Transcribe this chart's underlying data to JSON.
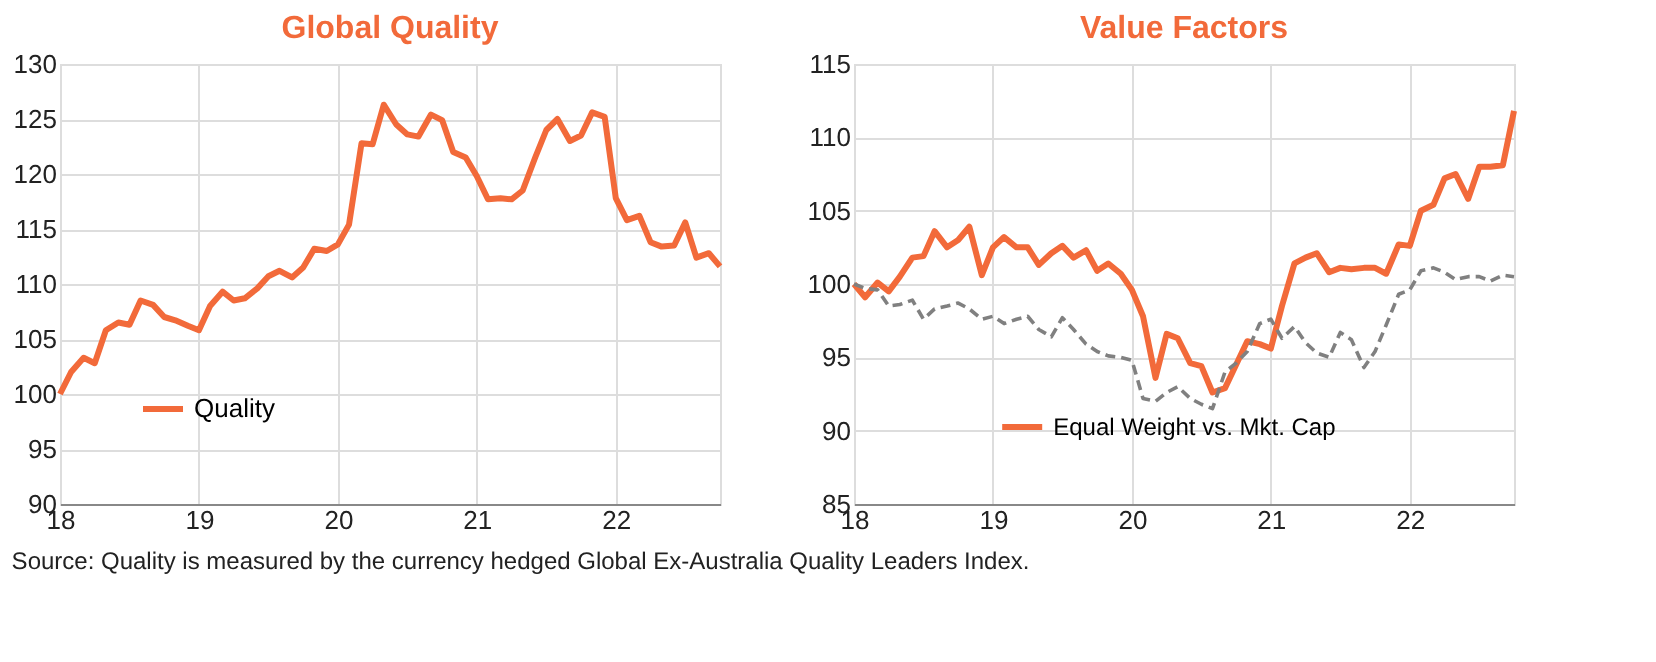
{
  "chart_data": [
    {
      "type": "line",
      "title": "Global Quality",
      "x": [
        18.0,
        18.08,
        18.17,
        18.25,
        18.33,
        18.42,
        18.5,
        18.58,
        18.67,
        18.75,
        18.83,
        18.92,
        19.0,
        19.08,
        19.17,
        19.25,
        19.33,
        19.42,
        19.5,
        19.58,
        19.67,
        19.75,
        19.83,
        19.92,
        20.0,
        20.08,
        20.17,
        20.25,
        20.33,
        20.42,
        20.5,
        20.58,
        20.67,
        20.75,
        20.83,
        20.92,
        21.0,
        21.08,
        21.17,
        21.25,
        21.33,
        21.42,
        21.5,
        21.58,
        21.67,
        21.75,
        21.83,
        21.92,
        22.0,
        22.08,
        22.17,
        22.25,
        22.33,
        22.42,
        22.5,
        22.58,
        22.67,
        22.75
      ],
      "series": [
        {
          "name": "Quality",
          "color": "#f26a3a",
          "values": [
            100,
            102,
            103.3,
            102.8,
            105.8,
            106.5,
            106.3,
            108.5,
            108.1,
            107,
            106.7,
            106.2,
            105.8,
            108,
            109.3,
            108.5,
            108.7,
            109.6,
            110.7,
            111.2,
            110.6,
            111.5,
            113.2,
            113,
            113.6,
            115.4,
            122.8,
            122.7,
            126.3,
            124.5,
            123.6,
            123.4,
            125.4,
            124.9,
            122,
            121.5,
            119.8,
            117.7,
            117.8,
            117.7,
            118.5,
            121.5,
            124,
            125,
            123,
            123.5,
            125.6,
            125.2,
            117.8,
            115.8,
            116.2,
            113.8,
            113.4,
            113.5,
            115.6,
            112.4,
            112.8,
            111.6
          ]
        }
      ],
      "xlim": [
        18,
        22.75
      ],
      "xticks": [
        18,
        19,
        20,
        21,
        22
      ],
      "ylim": [
        90,
        130
      ],
      "yticks": [
        90,
        95,
        100,
        105,
        110,
        115,
        120,
        125,
        130
      ],
      "grid": true,
      "legend": "bottom left",
      "line_style": "solid"
    },
    {
      "type": "line",
      "title": "Value Factors",
      "x": [
        18.0,
        18.08,
        18.17,
        18.25,
        18.33,
        18.42,
        18.5,
        18.58,
        18.67,
        18.75,
        18.83,
        18.92,
        19.0,
        19.08,
        19.17,
        19.25,
        19.33,
        19.42,
        19.5,
        19.58,
        19.67,
        19.75,
        19.83,
        19.92,
        20.0,
        20.08,
        20.17,
        20.25,
        20.33,
        20.42,
        20.5,
        20.58,
        20.67,
        20.75,
        20.83,
        20.92,
        21.0,
        21.08,
        21.17,
        21.25,
        21.33,
        21.42,
        21.5,
        21.58,
        21.67,
        21.75,
        21.83,
        21.92,
        22.0,
        22.08,
        22.17,
        22.25,
        22.33,
        22.42,
        22.5,
        22.58,
        22.67,
        22.75
      ],
      "series": [
        {
          "name": "Equal Weight vs. Mkt. Cap",
          "color": "#f26a3a",
          "line_style": "solid",
          "values": [
            100,
            99.1,
            100.1,
            99.5,
            100.5,
            101.8,
            101.9,
            103.6,
            102.5,
            103,
            103.9,
            100.6,
            102.5,
            103.2,
            102.5,
            102.5,
            101.3,
            102.1,
            102.6,
            101.8,
            102.3,
            100.9,
            101.4,
            100.7,
            99.6,
            97.8,
            93.6,
            96.6,
            96.3,
            94.6,
            94.4,
            92.6,
            92.9,
            94.5,
            96.1,
            95.9,
            95.6,
            98.5,
            101.4,
            101.8,
            102.1,
            100.8,
            101.1,
            101,
            101.1,
            101.1,
            100.7,
            102.7,
            102.6,
            105,
            105.4,
            107.2,
            107.5,
            105.8,
            108,
            108,
            108.1,
            111.8
          ]
        },
        {
          "color": "#808080",
          "line_style": "dashed",
          "values": [
            100,
            99.7,
            99.6,
            98.5,
            98.6,
            98.9,
            97.6,
            98.3,
            98.5,
            98.7,
            98.3,
            97.6,
            97.8,
            97.3,
            97.6,
            97.8,
            96.9,
            96.4,
            97.7,
            96.9,
            95.9,
            95.4,
            95.1,
            95,
            94.8,
            92.2,
            92,
            92.6,
            93,
            92.2,
            91.8,
            91.5,
            94,
            94.6,
            95.4,
            97.3,
            97.6,
            96.3,
            97.1,
            96,
            95.3,
            95,
            96.7,
            96.2,
            94.3,
            95.4,
            97.2,
            99.3,
            99.6,
            100.9,
            101.1,
            100.8,
            100.3,
            100.5,
            100.5,
            100.2,
            100.6,
            100.5
          ]
        }
      ],
      "xlim": [
        18,
        22.75
      ],
      "xticks": [
        18,
        19,
        20,
        21,
        22
      ],
      "ylim": [
        85,
        115
      ],
      "yticks": [
        85,
        90,
        95,
        100,
        105,
        110,
        115
      ],
      "grid": true,
      "legend": "bottom"
    },
    {
      "type": "other",
      "annotations": [
        "Source: Quality is measured by the currency hedged Global Ex-Australia Quality Leaders Index."
      ]
    }
  ]
}
